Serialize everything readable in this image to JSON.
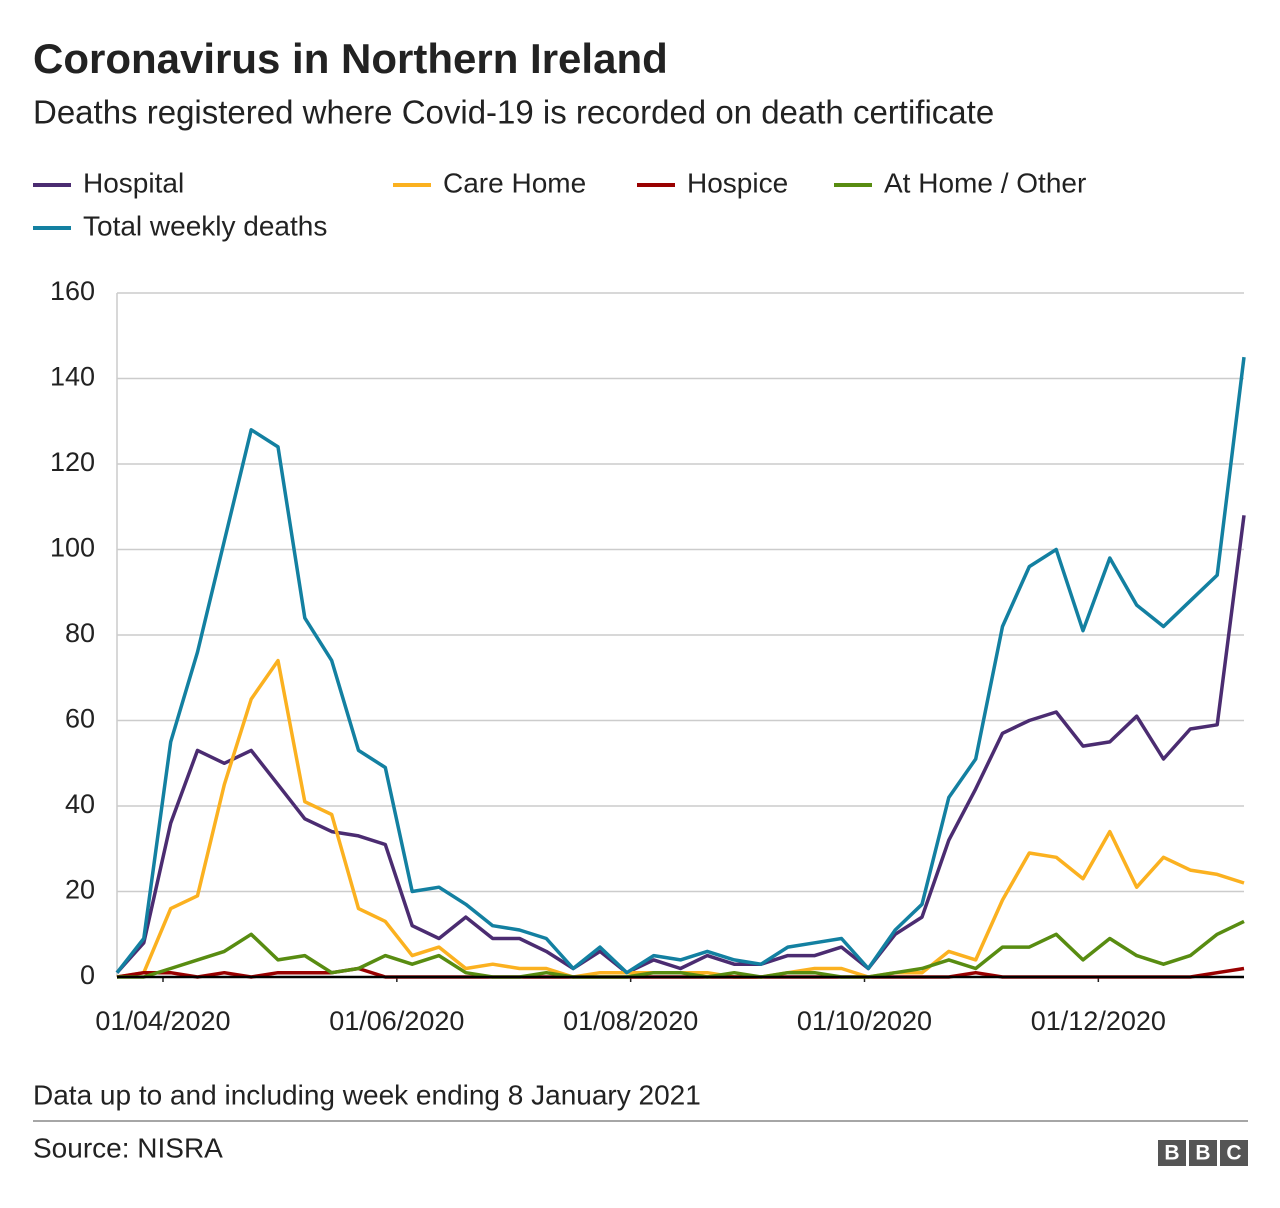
{
  "chart_data": {
    "type": "line",
    "title": "Coronavirus in Northern Ireland",
    "subtitle": "Deaths registered where Covid-19 is recorded on death certificate",
    "note": "Data up to and including week ending 8 January 2021",
    "source": "Source: NISRA",
    "logo": [
      "B",
      "B",
      "C"
    ],
    "x": [
      "20/03/2020",
      "27/03/2020",
      "03/04/2020",
      "10/04/2020",
      "17/04/2020",
      "24/04/2020",
      "01/05/2020",
      "08/05/2020",
      "15/05/2020",
      "22/05/2020",
      "29/05/2020",
      "05/06/2020",
      "12/06/2020",
      "19/06/2020",
      "26/06/2020",
      "03/07/2020",
      "10/07/2020",
      "17/07/2020",
      "24/07/2020",
      "31/07/2020",
      "07/08/2020",
      "14/08/2020",
      "21/08/2020",
      "28/08/2020",
      "04/09/2020",
      "11/09/2020",
      "18/09/2020",
      "25/09/2020",
      "02/10/2020",
      "09/10/2020",
      "16/10/2020",
      "23/10/2020",
      "30/10/2020",
      "06/11/2020",
      "13/11/2020",
      "20/11/2020",
      "27/11/2020",
      "04/12/2020",
      "11/12/2020",
      "18/12/2020",
      "25/12/2020",
      "01/01/2021",
      "08/01/2021"
    ],
    "xlim": [
      "20/03/2020",
      "08/01/2021"
    ],
    "xticks": [
      "01/04/2020",
      "01/06/2020",
      "01/08/2020",
      "01/10/2020",
      "01/12/2020"
    ],
    "ylim": [
      0,
      160
    ],
    "yticks": [
      0,
      20,
      40,
      60,
      80,
      100,
      120,
      140,
      160
    ],
    "grid": true,
    "series": [
      {
        "name": "Hospital",
        "color": "#4b2c71",
        "values": [
          1,
          8,
          36,
          53,
          50,
          53,
          45,
          37,
          34,
          33,
          31,
          12,
          9,
          14,
          9,
          9,
          6,
          2,
          6,
          1,
          4,
          2,
          5,
          3,
          3,
          5,
          5,
          7,
          2,
          10,
          14,
          32,
          44,
          57,
          60,
          62,
          54,
          55,
          61,
          51,
          58,
          59,
          108
        ]
      },
      {
        "name": "Care Home",
        "color": "#fbb120",
        "values": [
          0,
          1,
          16,
          19,
          45,
          65,
          74,
          41,
          38,
          16,
          13,
          5,
          7,
          2,
          3,
          2,
          2,
          0,
          1,
          1,
          1,
          1,
          1,
          0,
          0,
          1,
          2,
          2,
          0,
          1,
          1,
          6,
          4,
          18,
          29,
          28,
          23,
          34,
          21,
          28,
          25,
          24,
          22
        ]
      },
      {
        "name": "Hospice",
        "color": "#990000",
        "values": [
          0,
          1,
          1,
          0,
          1,
          0,
          1,
          1,
          1,
          2,
          0,
          0,
          0,
          0,
          0,
          0,
          0,
          0,
          0,
          0,
          0,
          0,
          0,
          0,
          0,
          0,
          0,
          0,
          0,
          0,
          0,
          0,
          1,
          0,
          0,
          0,
          0,
          0,
          0,
          0,
          0,
          1,
          2
        ]
      },
      {
        "name": "At Home / Other",
        "color": "#588c11",
        "values": [
          0,
          0,
          2,
          4,
          6,
          10,
          4,
          5,
          1,
          2,
          5,
          3,
          5,
          1,
          0,
          0,
          1,
          0,
          0,
          0,
          1,
          1,
          0,
          1,
          0,
          1,
          1,
          0,
          0,
          1,
          2,
          4,
          2,
          7,
          7,
          10,
          4,
          9,
          5,
          3,
          5,
          10,
          13
        ]
      },
      {
        "name": "Total weekly deaths",
        "color": "#1380a1",
        "values": [
          1,
          9,
          55,
          76,
          102,
          128,
          124,
          84,
          74,
          53,
          49,
          20,
          21,
          17,
          12,
          11,
          9,
          2,
          7,
          1,
          5,
          4,
          6,
          4,
          3,
          7,
          8,
          9,
          2,
          11,
          17,
          42,
          51,
          82,
          96,
          100,
          81,
          98,
          87,
          82,
          88,
          94,
          145
        ]
      }
    ]
  }
}
